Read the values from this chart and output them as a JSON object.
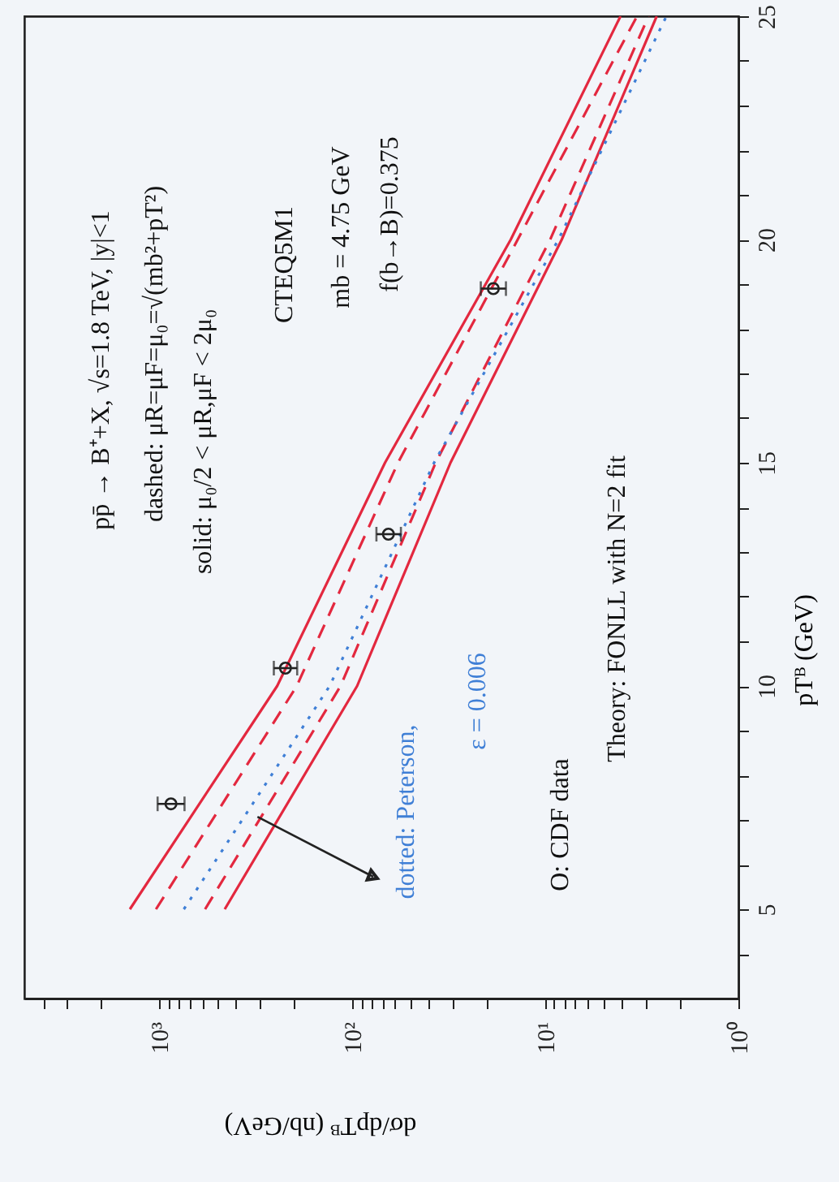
{
  "chart_data": {
    "type": "line",
    "xlabel": "dσ/dpTᴮ (nb/GeV)",
    "ylabel": "pTᴮ (GeV)",
    "log": "x",
    "xlim": [
      5000,
      1
    ],
    "ylim": [
      3,
      25
    ],
    "xticks": [
      {
        "value": 1,
        "label": "10⁰"
      },
      {
        "value": 2,
        "label": null
      },
      {
        "value": 3,
        "label": null
      },
      {
        "value": 4,
        "label": null
      },
      {
        "value": 5,
        "label": null
      },
      {
        "value": 6,
        "label": null
      },
      {
        "value": 7,
        "label": null
      },
      {
        "value": 8,
        "label": null
      },
      {
        "value": 9,
        "label": null
      },
      {
        "value": 10,
        "label": "10¹"
      },
      {
        "value": 20,
        "label": null
      },
      {
        "value": 30,
        "label": null
      },
      {
        "value": 40,
        "label": null
      },
      {
        "value": 50,
        "label": null
      },
      {
        "value": 60,
        "label": null
      },
      {
        "value": 70,
        "label": null
      },
      {
        "value": 80,
        "label": null
      },
      {
        "value": 90,
        "label": null
      },
      {
        "value": 100,
        "label": "10²"
      },
      {
        "value": 200,
        "label": null
      },
      {
        "value": 300,
        "label": null
      },
      {
        "value": 400,
        "label": null
      },
      {
        "value": 500,
        "label": null
      },
      {
        "value": 600,
        "label": null
      },
      {
        "value": 700,
        "label": null
      },
      {
        "value": 800,
        "label": null
      },
      {
        "value": 900,
        "label": null
      },
      {
        "value": 1000,
        "label": "10³"
      },
      {
        "value": 2000,
        "label": null
      },
      {
        "value": 3000,
        "label": null
      },
      {
        "value": 4000,
        "label": null
      }
    ],
    "yticks": [
      {
        "value": 4,
        "label": null
      },
      5,
      {
        "value": 6,
        "label": null
      },
      {
        "value": 7,
        "label": null
      },
      {
        "value": 8,
        "label": null
      },
      {
        "value": 9,
        "label": null
      },
      10,
      {
        "value": 11,
        "label": null
      },
      {
        "value": 12,
        "label": null
      },
      {
        "value": 13,
        "label": null
      },
      {
        "value": 14,
        "label": null
      },
      15,
      {
        "value": 16,
        "label": null
      },
      {
        "value": 17,
        "label": null
      },
      {
        "value": 18,
        "label": null
      },
      {
        "value": 19,
        "label": null
      },
      20,
      {
        "value": 21,
        "label": null
      },
      {
        "value": 22,
        "label": null
      },
      {
        "value": 23,
        "label": null
      },
      {
        "value": 24,
        "label": null
      },
      25
    ],
    "grid": false,
    "series": [
      {
        "line_style": "solid",
        "color": "#e3283f",
        "x": [
          1420,
          245,
          67.7,
          15.1,
          4.08
        ],
        "values": [
          5,
          10,
          15,
          20,
          25
        ]
      },
      {
        "line_style": "dashed",
        "color": "#e3283f",
        "x": [
          1040,
          194,
          58,
          13.9,
          3.35
        ],
        "values": [
          5,
          10,
          15,
          20,
          25
        ]
      },
      {
        "line_style": "dashed",
        "color": "#e3283f",
        "x": [
          579,
          115,
          37,
          9.44,
          2.92
        ],
        "values": [
          5,
          10,
          15,
          20,
          25
        ]
      },
      {
        "line_style": "solid",
        "color": "#e3283f",
        "x": [
          458,
          94.4,
          31,
          8.22,
          2.65
        ],
        "values": [
          5,
          10,
          15,
          20,
          25
        ]
      },
      {
        "line_style": "dotted",
        "color": "#3f7fd6",
        "x": [
          746,
          131,
          37.7,
          8.55,
          2.36
        ],
        "values": [
          5,
          10,
          15,
          20,
          25
        ]
      },
      {
        "type": "scatter",
        "marker": "circle",
        "color": "#222222",
        "x": [
          870,
          222,
          65,
          18.6
        ],
        "values": [
          7.36,
          10.4,
          13.4,
          18.9
        ],
        "xerrors": [
          [
            740,
            1020
          ],
          [
            193,
            255
          ],
          [
            56,
            75
          ],
          [
            16,
            21.6
          ]
        ]
      }
    ],
    "annotations": [
      "pp̄ → B⁺+X, √s=1.8 TeV, |y|<1",
      "dashed: μR=μF=μ₀=√(mb²+pT²)",
      "solid: μ₀/2 < μR,μF < 2μ₀",
      "CTEQ5M1",
      "mb = 4.75 GeV",
      "f(b→B)=0.375",
      {
        "text": "dotted: Peterson,",
        "x": 310,
        "y": 7.07
      },
      "ε = 0.006",
      "O: CDF data",
      "Theory: FONLL with N=2 fit"
    ]
  }
}
